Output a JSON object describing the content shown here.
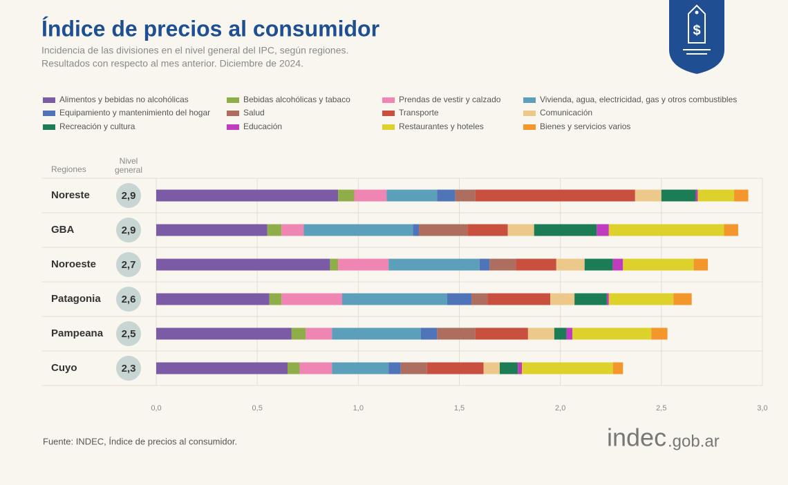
{
  "header": {
    "title": "Índice de precios al consumidor",
    "subtitle_lines": [
      "Incidencia de las divisiones en el nivel general del IPC, según regiones.",
      "Resultados con respecto al mes anterior. Diciembre de 2024."
    ]
  },
  "chart_data": {
    "type": "bar",
    "orientation": "horizontal",
    "stacked": true,
    "row_header": "Regiones",
    "total_header": [
      "Nivel",
      "general"
    ],
    "categories": [
      "Noreste",
      "GBA",
      "Noroeste",
      "Patagonia",
      "Pampeana",
      "Cuyo"
    ],
    "nivel_general": {
      "values": [
        2.9,
        2.9,
        2.7,
        2.6,
        2.5,
        2.3
      ],
      "value_labels": [
        "2,9",
        "2,9",
        "2,7",
        "2,6",
        "2,5",
        "2,3"
      ]
    },
    "series": [
      {
        "name": "Alimentos y bebidas no alcohólicas",
        "color": "#7b5aa6",
        "values": [
          0.9,
          0.55,
          0.86,
          0.56,
          0.67,
          0.65
        ]
      },
      {
        "name": "Bebidas alcohólicas y tabaco",
        "color": "#8fae4a",
        "values": [
          0.08,
          0.07,
          0.04,
          0.06,
          0.07,
          0.06
        ]
      },
      {
        "name": "Prendas de vestir y calzado",
        "color": "#ef85b3",
        "values": [
          0.16,
          0.11,
          0.25,
          0.3,
          0.13,
          0.16
        ]
      },
      {
        "name": "Vivienda, agua, electricidad, gas y otros combustibles",
        "color": "#5b9fba",
        "values": [
          0.25,
          0.54,
          0.45,
          0.52,
          0.44,
          0.28
        ]
      },
      {
        "name": "Equipamiento y mantenimiento del hogar",
        "color": "#4f74b8",
        "values": [
          0.09,
          0.03,
          0.05,
          0.12,
          0.08,
          0.06
        ]
      },
      {
        "name": "Salud",
        "color": "#ad6e5f",
        "values": [
          0.1,
          0.24,
          0.13,
          0.08,
          0.19,
          0.13
        ]
      },
      {
        "name": "Transporte",
        "color": "#c9503e",
        "values": [
          0.79,
          0.2,
          0.2,
          0.31,
          0.26,
          0.28
        ]
      },
      {
        "name": "Comunicación",
        "color": "#ecc98a",
        "values": [
          0.13,
          0.13,
          0.14,
          0.12,
          0.13,
          0.08
        ]
      },
      {
        "name": "Recreación y cultura",
        "color": "#1c7c56",
        "values": [
          0.17,
          0.31,
          0.14,
          0.16,
          0.06,
          0.09
        ]
      },
      {
        "name": "Educación",
        "color": "#c13bbf",
        "values": [
          0.01,
          0.06,
          0.05,
          0.01,
          0.03,
          0.02
        ]
      },
      {
        "name": "Restaurantes y hoteles",
        "color": "#ddd12b",
        "values": [
          0.18,
          0.57,
          0.35,
          0.32,
          0.39,
          0.45
        ]
      },
      {
        "name": "Bienes y servicios varios",
        "color": "#f3962c",
        "values": [
          0.07,
          0.07,
          0.07,
          0.09,
          0.08,
          0.05
        ]
      }
    ],
    "xlim": [
      0,
      3.0
    ],
    "xticks": [
      {
        "value": 0,
        "label": "0,0"
      },
      {
        "value": 0.5,
        "label": "0,5"
      },
      {
        "value": 1.0,
        "label": "1,0"
      },
      {
        "value": 1.5,
        "label": "1,5"
      },
      {
        "value": 2.0,
        "label": "2,0"
      },
      {
        "value": 2.5,
        "label": "2,5"
      },
      {
        "value": 3.0,
        "label": "3,0"
      }
    ],
    "grid": true
  },
  "footer": {
    "source": "Fuente: INDEC, Índice de precios al consumidor.",
    "brand": "indec",
    "brand_suffix": ".gob.ar"
  }
}
